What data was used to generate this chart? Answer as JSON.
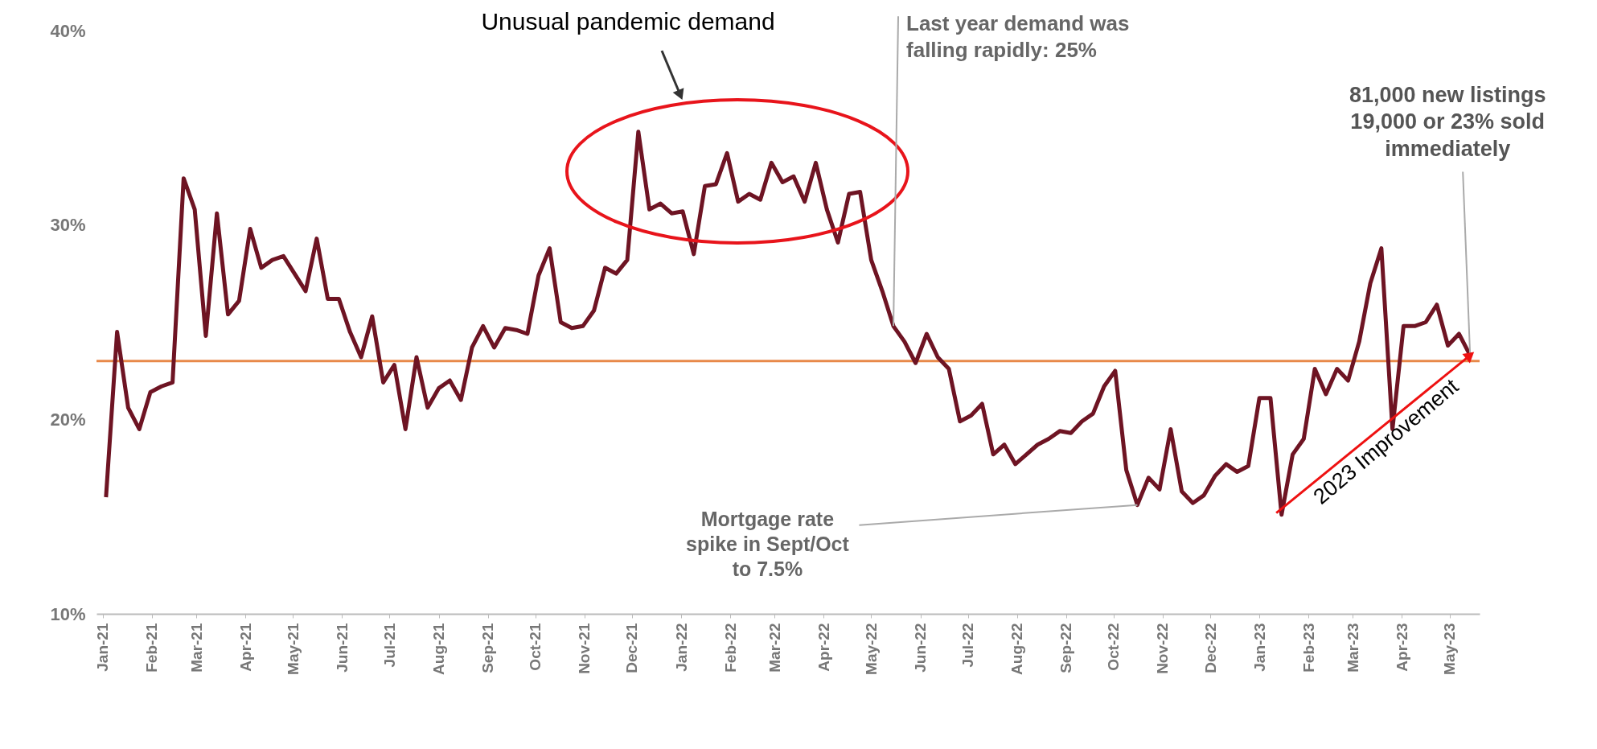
{
  "chart_data": {
    "type": "line",
    "x": [
      "2021-01-03",
      "2021-01-10",
      "2021-01-17",
      "2021-01-24",
      "2021-01-31",
      "2021-02-07",
      "2021-02-14",
      "2021-02-21",
      "2021-02-28",
      "2021-03-07",
      "2021-03-14",
      "2021-03-21",
      "2021-03-28",
      "2021-04-04",
      "2021-04-11",
      "2021-04-18",
      "2021-04-25",
      "2021-05-02",
      "2021-05-09",
      "2021-05-16",
      "2021-05-23",
      "2021-05-30",
      "2021-06-06",
      "2021-06-13",
      "2021-06-20",
      "2021-06-27",
      "2021-07-04",
      "2021-07-11",
      "2021-07-18",
      "2021-07-25",
      "2021-08-01",
      "2021-08-08",
      "2021-08-15",
      "2021-08-22",
      "2021-08-29",
      "2021-09-05",
      "2021-09-12",
      "2021-09-19",
      "2021-09-26",
      "2021-10-03",
      "2021-10-10",
      "2021-10-17",
      "2021-10-24",
      "2021-10-31",
      "2021-11-07",
      "2021-11-14",
      "2021-11-21",
      "2021-11-28",
      "2021-12-05",
      "2021-12-12",
      "2021-12-19",
      "2021-12-26",
      "2022-01-02",
      "2022-01-09",
      "2022-01-16",
      "2022-01-23",
      "2022-01-30",
      "2022-02-06",
      "2022-02-13",
      "2022-02-20",
      "2022-02-27",
      "2022-03-06",
      "2022-03-13",
      "2022-03-20",
      "2022-03-27",
      "2022-04-03",
      "2022-04-10",
      "2022-04-17",
      "2022-04-24",
      "2022-05-01",
      "2022-05-08",
      "2022-05-15",
      "2022-05-22",
      "2022-05-29",
      "2022-06-05",
      "2022-06-12",
      "2022-06-19",
      "2022-06-26",
      "2022-07-03",
      "2022-07-10",
      "2022-07-17",
      "2022-07-24",
      "2022-07-31",
      "2022-08-07",
      "2022-08-14",
      "2022-08-21",
      "2022-08-28",
      "2022-09-04",
      "2022-09-11",
      "2022-09-18",
      "2022-09-25",
      "2022-10-02",
      "2022-10-09",
      "2022-10-16",
      "2022-10-23",
      "2022-10-30",
      "2022-11-06",
      "2022-11-13",
      "2022-11-20",
      "2022-11-27",
      "2022-12-04",
      "2022-12-11",
      "2022-12-18",
      "2022-12-25",
      "2023-01-01",
      "2023-01-08",
      "2023-01-15",
      "2023-01-22",
      "2023-01-29",
      "2023-02-05",
      "2023-02-12",
      "2023-02-19",
      "2023-02-26",
      "2023-03-05",
      "2023-03-12",
      "2023-03-19",
      "2023-03-26",
      "2023-04-02",
      "2023-04-09",
      "2023-04-16",
      "2023-04-23",
      "2023-04-30",
      "2023-05-07",
      "2023-05-14"
    ],
    "series": [
      {
        "color": "#6e1423",
        "values": [
          16.0,
          24.5,
          20.6,
          19.5,
          21.4,
          21.7,
          21.9,
          32.4,
          30.8,
          24.3,
          30.6,
          25.4,
          26.1,
          29.8,
          27.8,
          28.2,
          28.4,
          27.5,
          26.6,
          29.3,
          26.2,
          26.2,
          24.5,
          23.2,
          25.3,
          21.9,
          22.8,
          19.5,
          23.2,
          20.6,
          21.6,
          22.0,
          21.0,
          23.7,
          24.8,
          23.7,
          24.7,
          24.6,
          24.4,
          27.4,
          28.8,
          25.0,
          24.7,
          24.8,
          25.6,
          27.8,
          27.5,
          28.2,
          34.8,
          30.8,
          31.1,
          30.6,
          30.7,
          28.5,
          32.0,
          32.1,
          33.7,
          31.2,
          31.6,
          31.3,
          33.2,
          32.2,
          32.5,
          31.2,
          33.2,
          30.8,
          29.1,
          31.6,
          31.7,
          28.2,
          26.6,
          24.8,
          24.0,
          22.9,
          24.4,
          23.2,
          22.6,
          19.9,
          20.2,
          20.8,
          18.2,
          18.7,
          17.7,
          18.2,
          18.7,
          19.0,
          19.4,
          19.3,
          19.9,
          20.3,
          21.7,
          22.5,
          17.4,
          15.6,
          17.0,
          16.4,
          19.5,
          16.3,
          15.7,
          16.1,
          17.1,
          17.7,
          17.3,
          17.6,
          21.1,
          21.1,
          15.1,
          18.2,
          19.0,
          22.6,
          21.3,
          22.6,
          22.0,
          24.0,
          27.0,
          28.8,
          19.5,
          24.8,
          24.8,
          25.0,
          25.9,
          23.8,
          24.4,
          23.3
        ]
      }
    ],
    "xlim": [
      "2020-12-28",
      "2023-05-20"
    ],
    "xticks": [
      {
        "value": "2021-01-01",
        "label": "Jan-21"
      },
      {
        "value": "2021-02-01",
        "label": "Feb-21"
      },
      {
        "value": "2021-03-01",
        "label": "Mar-21"
      },
      {
        "value": "2021-04-01",
        "label": "Apr-21"
      },
      {
        "value": "2021-05-01",
        "label": "May-21"
      },
      {
        "value": "2021-06-01",
        "label": "Jun-21"
      },
      {
        "value": "2021-07-01",
        "label": "Jul-21"
      },
      {
        "value": "2021-08-01",
        "label": "Aug-21"
      },
      {
        "value": "2021-09-01",
        "label": "Sep-21"
      },
      {
        "value": "2021-10-01",
        "label": "Oct-21"
      },
      {
        "value": "2021-11-01",
        "label": "Nov-21"
      },
      {
        "value": "2021-12-01",
        "label": "Dec-21"
      },
      {
        "value": "2022-01-01",
        "label": "Jan-22"
      },
      {
        "value": "2022-02-01",
        "label": "Feb-22"
      },
      {
        "value": "2022-03-01",
        "label": "Mar-22"
      },
      {
        "value": "2022-04-01",
        "label": "Apr-22"
      },
      {
        "value": "2022-05-01",
        "label": "May-22"
      },
      {
        "value": "2022-06-01",
        "label": "Jun-22"
      },
      {
        "value": "2022-07-01",
        "label": "Jul-22"
      },
      {
        "value": "2022-08-01",
        "label": "Aug-22"
      },
      {
        "value": "2022-09-01",
        "label": "Sep-22"
      },
      {
        "value": "2022-10-01",
        "label": "Oct-22"
      },
      {
        "value": "2022-11-01",
        "label": "Nov-22"
      },
      {
        "value": "2022-12-01",
        "label": "Dec-22"
      },
      {
        "value": "2023-01-01",
        "label": "Jan-23"
      },
      {
        "value": "2023-02-01",
        "label": "Feb-23"
      },
      {
        "value": "2023-03-01",
        "label": "Mar-23"
      },
      {
        "value": "2023-04-01",
        "label": "Apr-23"
      },
      {
        "value": "2023-05-01",
        "label": "May-23"
      }
    ],
    "ylim": [
      10,
      40
    ],
    "yticks": [
      {
        "value": 10,
        "label": "10%"
      },
      {
        "value": 20,
        "label": "20%"
      },
      {
        "value": 30,
        "label": "30%"
      },
      {
        "value": 40,
        "label": "40%"
      }
    ],
    "ref_lines": [
      {
        "axis": "y",
        "value": 23,
        "color": "#e8894a"
      }
    ],
    "grid": false,
    "marker": "none",
    "line_style": "solid",
    "annotations": [
      "Unusual pandemic demand",
      {
        "text": "Last year demand was\nfalling rapidly: 25%",
        "x": "2022-05-15",
        "y": 24.8
      },
      {
        "text": "Mortgage rate\nspike in Sept/Oct\nto 7.5%",
        "x": "2022-10-16",
        "y": 15.6
      },
      {
        "text": "81,000 new listings\n19,000 or 23% sold\nimmediately",
        "x": "2023-05-14",
        "y": 23.3
      },
      {
        "text": "2023 Improvement",
        "x": "2023-05-14",
        "y": 23.3
      }
    ]
  }
}
